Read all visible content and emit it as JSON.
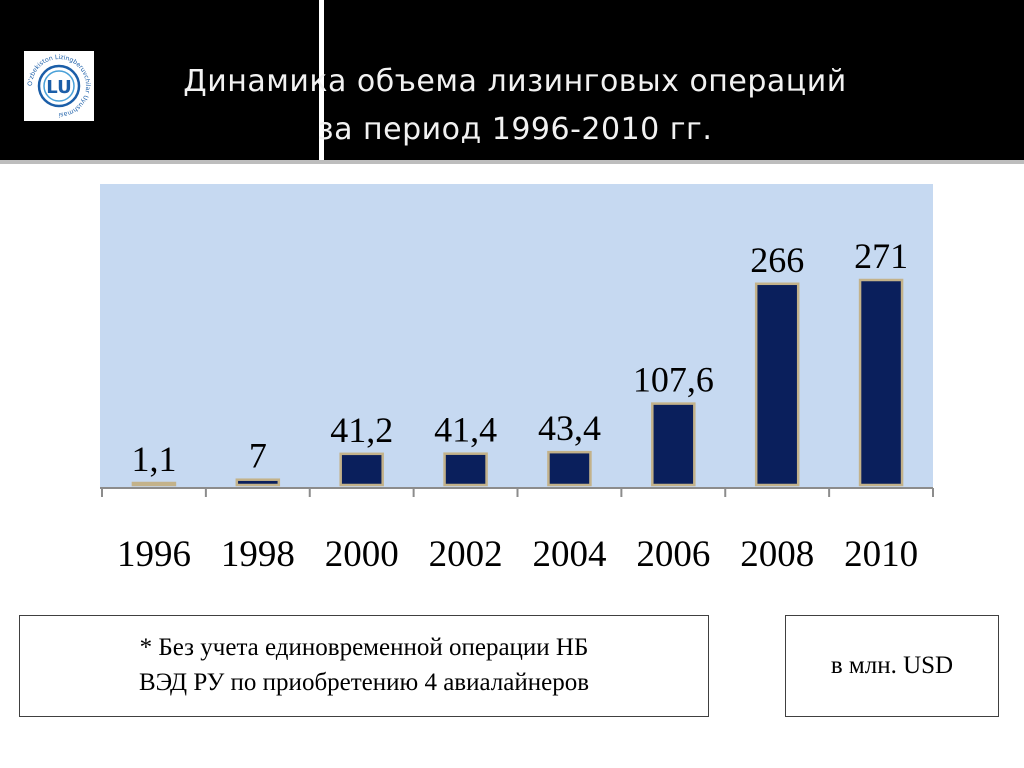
{
  "title": {
    "line1": "Динамика  объема лизинговых операций",
    "line2": "за период 1996-2010 гг."
  },
  "logo": {
    "text": "O'zbekiston Lizingberuvchilar Uyushmasi",
    "mark": "LU"
  },
  "colors": {
    "header_bg": "#000000",
    "plot_bg": "#c6d9f1",
    "bar_fill": "#0a1f5c",
    "bar_outline": "#c3b28a"
  },
  "chart_data": {
    "type": "bar",
    "categories": [
      "1996",
      "1998",
      "2000",
      "2002",
      "2004",
      "2006",
      "2008",
      "2010"
    ],
    "values": [
      1.1,
      7,
      41.2,
      41.4,
      43.4,
      107.6,
      266,
      271
    ],
    "data_labels": [
      "1,1",
      "7",
      "41,2",
      "41,4",
      "43,4",
      "107,6",
      "266",
      "271"
    ],
    "grid": false,
    "legend": "none"
  },
  "footnote": {
    "line1": "* Без учета единовременной операции НБ",
    "line2": "ВЭД РУ по приобретению 4 авиалайнеров"
  },
  "unit_label": "в млн. USD"
}
